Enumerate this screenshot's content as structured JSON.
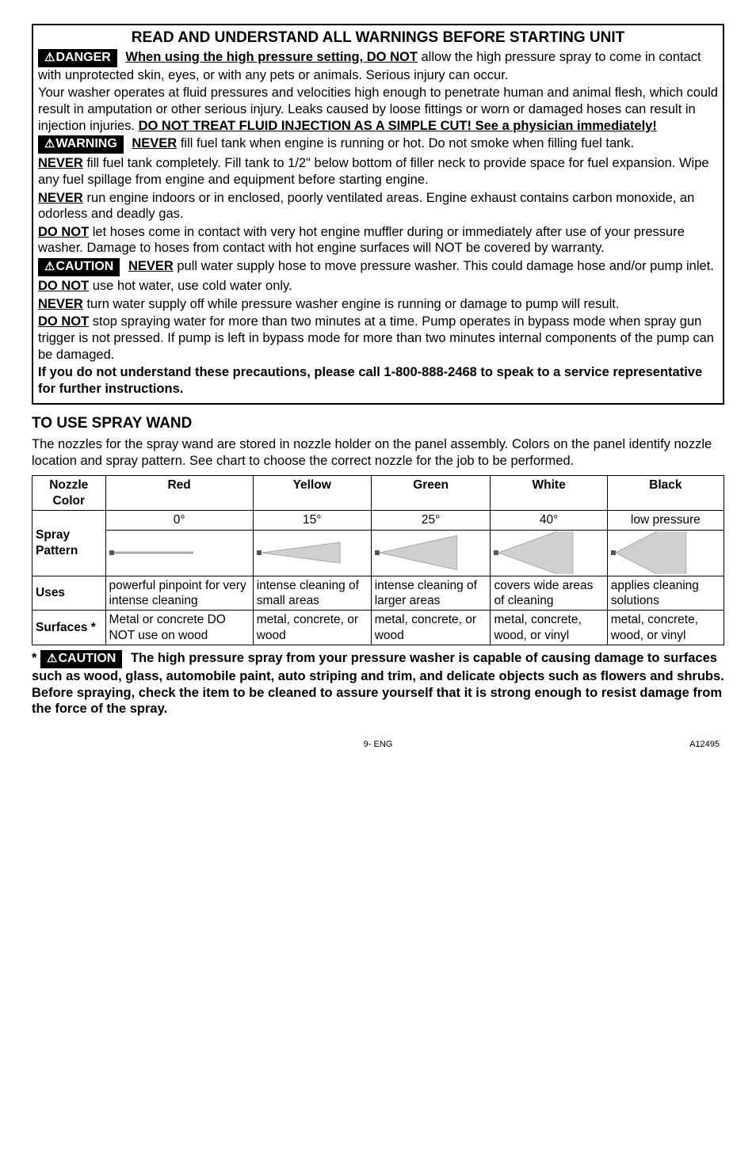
{
  "box": {
    "heading": "READ AND UNDERSTAND ALL WARNINGS BEFORE STARTING UNIT",
    "danger_badge": "DANGER",
    "warning_badge": "WARNING",
    "caution_badge": "CAUTION",
    "p1_lead": "When using the high pressure setting, DO NOT",
    "p1_rest": " allow the high pressure spray to come in contact with unprotected skin, eyes, or with any pets or animals. Serious injury can occur.",
    "p2_a": "Your washer operates at fluid pressures and velocities high enough to penetrate human and animal flesh, which could result in amputation or other serious injury. Leaks caused by loose fittings or worn or damaged hoses can result in injection injuries. ",
    "p2_b": "DO NOT TREAT FLUID INJECTION AS A SIMPLE CUT! See a physician immediately!",
    "p3_lead": "NEVER",
    "p3_rest": " fill fuel tank when engine is running or hot. Do not smoke when filling fuel tank.",
    "p4_lead": "NEVER",
    "p4_rest": " fill fuel tank completely. Fill tank to 1/2\" below bottom of filler neck to provide space for fuel expansion. Wipe any fuel spillage from engine and equipment before starting engine.",
    "p5_lead": "NEVER",
    "p5_rest": " run engine indoors or in enclosed, poorly ventilated areas. Engine exhaust contains carbon monoxide, an odorless and deadly gas.",
    "p6_lead": "DO NOT",
    "p6_rest": " let hoses come in contact with very hot engine muffler during or immediately after use of your pressure washer. Damage to hoses from contact with hot engine surfaces will NOT be covered by warranty.",
    "p7_lead": "NEVER",
    "p7_rest": " pull water supply hose to move pressure washer. This could damage hose and/or pump inlet.",
    "p8_lead": "DO NOT",
    "p8_rest": " use hot water, use cold water only.",
    "p9_lead": "NEVER",
    "p9_rest": " turn water supply off while pressure washer engine is running or damage to pump will result.",
    "p10_lead": "DO NOT",
    "p10_rest": " stop spraying water for more than two minutes at a time. Pump operates in bypass mode when spray gun trigger is not pressed. If pump is left in bypass mode for more than two minutes internal components of the pump can be damaged.",
    "p11": "If you do not understand these precautions, please call 1-800-888-2468 to speak to a service representative for further instructions."
  },
  "wand": {
    "title": "TO USE SPRAY WAND",
    "intro": "The nozzles for the spray wand are stored in nozzle holder on the panel assembly.  Colors on the panel identify nozzle location and spray pattern. See chart to choose the correct nozzle for the job to be performed.",
    "table": {
      "header": [
        "Nozzle Color",
        "Red",
        "Yellow",
        "Green",
        "White",
        "Black"
      ],
      "row_labels": [
        "Spray Pattern",
        "Uses",
        "Surfaces *"
      ],
      "degrees": [
        "0°",
        "15°",
        "25°",
        "40°",
        "low pressure"
      ],
      "pattern_angles": [
        0,
        15,
        25,
        40,
        55
      ],
      "spray_color": "#a9a9a9",
      "uses": [
        "powerful pinpoint for very intense cleaning",
        "intense cleaning of small areas",
        "intense cleaning of larger areas",
        "covers wide areas of cleaning",
        "applies cleaning solutions"
      ],
      "surfaces": [
        "Metal or concrete DO NOT use on wood",
        "metal, concrete, or wood",
        "metal, concrete, or wood",
        "metal, concrete, wood, or vinyl",
        "metal, concrete, wood, or vinyl"
      ]
    },
    "footnote_badge": "CAUTION",
    "footnote_lead": "*",
    "footnote": "The high pressure spray from your pressure washer is capable of causing damage to surfaces such as wood, glass, automobile paint, auto striping and trim, and delicate objects such as flowers and shrubs. Before spraying, check the item to be cleaned to assure yourself that it is strong enough to resist damage from the force of the spray."
  },
  "footer": {
    "center": "9- ENG",
    "right": "A12495"
  }
}
